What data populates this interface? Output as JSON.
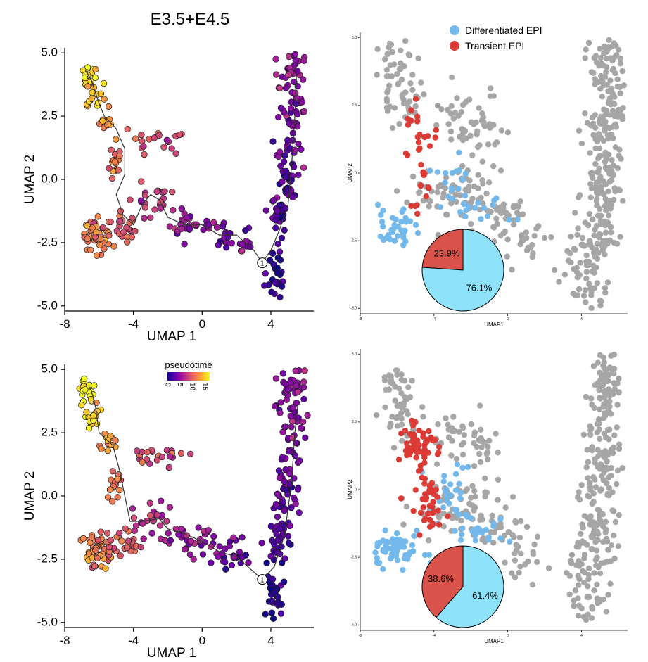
{
  "figure_title": "E3.5+E4.5",
  "colors": {
    "axis": "#000000",
    "trajectory": "#333333",
    "grey_cells": "#a6a6a6",
    "differentiated_epi": "#74b9ec",
    "transient_epi": "#dc3b35",
    "pie_differentiated": "#8ee2f9",
    "pie_transient": "#d9534a"
  },
  "chart_data": [
    {
      "id": "top-left",
      "type": "scatter",
      "title": "E3.5+E4.5",
      "xlabel": "UMAP 1",
      "ylabel": "UMAP 2",
      "xlim": [
        -8,
        6.5
      ],
      "ylim": [
        -5.2,
        5.2
      ],
      "xticks": [
        "-8",
        "-4",
        "0",
        "4"
      ],
      "xtick_values": [
        -8,
        -4,
        0,
        4
      ],
      "yticks": [
        "-5.0",
        "-2.5",
        "0.0",
        "2.5",
        "5.0"
      ],
      "ytick_values": [
        -5,
        -2.5,
        0,
        2.5,
        5
      ],
      "color_by": "pseudotime",
      "root_node_label": "1",
      "root_node": [
        3.5,
        -3.3
      ],
      "trajectory": [
        [
          -6.8,
          4.3
        ],
        [
          -6.5,
          4.0
        ],
        [
          -6.3,
          3.6
        ],
        [
          -6.0,
          3.0
        ],
        [
          -5.7,
          2.5
        ],
        [
          -5.0,
          2.0
        ],
        [
          -4.5,
          1.2
        ],
        [
          -4.5,
          0.2
        ],
        [
          -5.0,
          -0.6
        ],
        [
          -4.6,
          -1.4
        ],
        [
          -4.0,
          -1.8
        ],
        [
          -3.5,
          -1.0
        ],
        [
          -3.0,
          -0.6
        ],
        [
          -2.5,
          -0.8
        ],
        [
          -2.0,
          -1.5
        ],
        [
          -1.0,
          -1.8
        ],
        [
          0.0,
          -1.8
        ],
        [
          1.0,
          -2.2
        ],
        [
          2.0,
          -2.2
        ],
        [
          3.0,
          -2.8
        ],
        [
          3.5,
          -3.3
        ],
        [
          4.0,
          -2.8
        ],
        [
          4.5,
          -2.0
        ],
        [
          5.0,
          -1.0
        ],
        [
          5.2,
          0.5
        ],
        [
          5.4,
          2.5
        ],
        [
          5.5,
          4.4
        ]
      ],
      "pseudotime_range": [
        0,
        17
      ],
      "n_cells": 380
    },
    {
      "id": "top-right",
      "type": "scatter",
      "xlabel": "UMAP1",
      "ylabel": "UMAP2",
      "xlim": [
        -8,
        6.5
      ],
      "ylim": [
        -5.2,
        5.2
      ],
      "xticks": [
        "-8",
        "-4",
        "0",
        "4"
      ],
      "xtick_values": [
        -8,
        -4,
        0,
        4
      ],
      "yticks": [
        "-5.0",
        "-2.5",
        "0",
        "2.5",
        "5.0"
      ],
      "ytick_values": [
        -5,
        -2.5,
        0,
        2.5,
        5
      ],
      "legend": [
        "Differentiated EPI",
        "Transient EPI"
      ],
      "legend_position": "top",
      "pie": {
        "labels": [
          "Transient EPI",
          "Differentiated EPI"
        ],
        "values": [
          23.9,
          76.1
        ],
        "value_labels": [
          "23.9%",
          "76.1%"
        ]
      },
      "n_grey": 560,
      "n_differentiated": 70,
      "n_transient": 32
    },
    {
      "id": "bottom-left",
      "type": "scatter",
      "xlabel": "UMAP 1",
      "ylabel": "UMAP 2",
      "xlim": [
        -8,
        6.5
      ],
      "ylim": [
        -5.2,
        5.2
      ],
      "xticks": [
        "-8",
        "-4",
        "0",
        "4"
      ],
      "xtick_values": [
        -8,
        -4,
        0,
        4
      ],
      "yticks": [
        "-5.0",
        "-2.5",
        "0.0",
        "2.5",
        "5.0"
      ],
      "ytick_values": [
        -5,
        -2.5,
        0,
        2.5,
        5
      ],
      "color_by": "pseudotime",
      "colorbar": {
        "title": "pseudotime",
        "ticks": [
          "0",
          "5",
          "10",
          "15"
        ],
        "tick_values": [
          0,
          5,
          10,
          15
        ],
        "range": [
          0,
          17
        ]
      },
      "root_node_label": "1",
      "root_node": [
        3.5,
        -3.3
      ],
      "trajectory": [
        [
          -6.5,
          4.3
        ],
        [
          -6.2,
          3.5
        ],
        [
          -6.0,
          2.5
        ],
        [
          -5.2,
          2.0
        ],
        [
          -4.8,
          1.0
        ],
        [
          -4.5,
          0.0
        ],
        [
          -4.2,
          -1.0
        ],
        [
          -3.5,
          -1.0
        ],
        [
          -2.5,
          -0.9
        ],
        [
          -2.0,
          -1.3
        ],
        [
          -1.0,
          -1.5
        ],
        [
          0.0,
          -1.8
        ],
        [
          1.0,
          -2.2
        ],
        [
          2.0,
          -2.4
        ],
        [
          3.0,
          -3.0
        ],
        [
          3.5,
          -3.3
        ],
        [
          4.2,
          -2.8
        ],
        [
          4.8,
          -1.5
        ],
        [
          5.2,
          0.5
        ],
        [
          5.4,
          2.5
        ],
        [
          5.6,
          3.8
        ]
      ],
      "pseudotime_range": [
        0,
        17
      ],
      "n_cells": 420
    },
    {
      "id": "bottom-right",
      "type": "scatter",
      "xlabel": "UMAP1",
      "ylabel": "UMAP2",
      "xlim": [
        -8,
        6.5
      ],
      "ylim": [
        -5.2,
        5.2
      ],
      "xticks": [
        "-8",
        "-4",
        "0",
        "4"
      ],
      "xtick_values": [
        -8,
        -4,
        0,
        4
      ],
      "yticks": [
        "-5.0",
        "-2.5",
        "0",
        "2.5",
        "5.0"
      ],
      "ytick_values": [
        -5,
        -2.5,
        0,
        2.5,
        5
      ],
      "pie": {
        "labels": [
          "Transient EPI",
          "Differentiated EPI"
        ],
        "values": [
          38.6,
          61.4
        ],
        "value_labels": [
          "38.6%",
          "61.4%"
        ]
      },
      "n_grey": 500,
      "n_differentiated": 120,
      "n_transient": 95
    }
  ]
}
